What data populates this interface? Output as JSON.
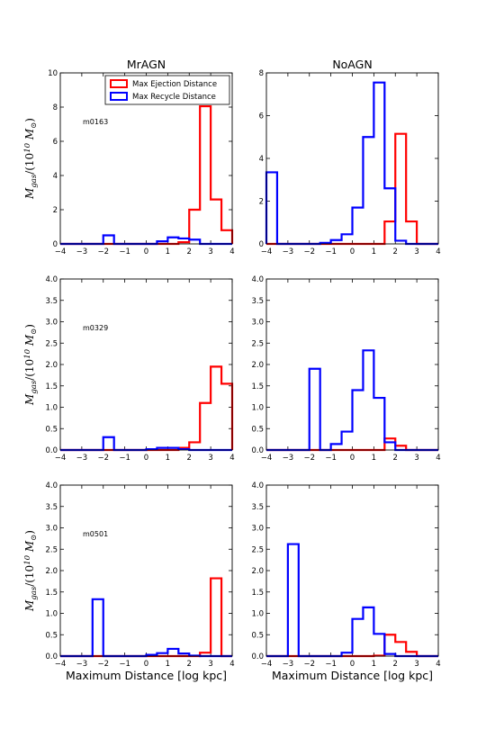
{
  "figure": {
    "column_titles": [
      "MrAGN",
      "NoAGN"
    ],
    "ylabel": {
      "main": "M",
      "sub": "gas",
      "rest_open": "/(10",
      "exp": "10",
      "mid": " M",
      "sun_sub": "⊙",
      "close": ")"
    },
    "xlabel": "Maximum Distance [log kpc]"
  },
  "colors": {
    "ejection": "#ff0000",
    "recycle": "#0000ff",
    "axis": "#000000"
  },
  "legend": {
    "placement": "upper-right",
    "entries": [
      "Max Ejection Distance",
      "Max Recycle Distance"
    ]
  },
  "chart_data": [
    {
      "type": "histogram",
      "panel": "MrAGN m0163",
      "annotation": "m0163",
      "xlim": [
        -4,
        4
      ],
      "ylim": [
        0,
        10
      ],
      "xticks": [
        "−4",
        "−3",
        "−2",
        "−1",
        "0",
        "1",
        "2",
        "3",
        "4"
      ],
      "yticks": [
        "0",
        "2",
        "4",
        "6",
        "8",
        "10"
      ],
      "bin_edges": [
        -4,
        -3.5,
        -3,
        -2.5,
        -2,
        -1.5,
        -1,
        -0.5,
        0,
        0.5,
        1,
        1.5,
        2,
        2.5,
        3,
        3.5,
        4
      ],
      "series": [
        {
          "name": "Max Ejection Distance",
          "values": [
            0,
            0,
            0,
            0,
            0,
            0,
            0,
            0,
            0,
            0,
            0,
            0.1,
            2.0,
            8.05,
            2.6,
            0.8
          ]
        },
        {
          "name": "Max Recycle Distance",
          "values": [
            0,
            0,
            0,
            0,
            0.5,
            0,
            0,
            0,
            0,
            0.15,
            0.38,
            0.32,
            0.25,
            0,
            0,
            0
          ]
        }
      ]
    },
    {
      "type": "histogram",
      "panel": "NoAGN m0163",
      "annotation": "",
      "xlim": [
        -4,
        4
      ],
      "ylim": [
        0,
        8
      ],
      "xticks": [
        "−4",
        "−3",
        "−2",
        "−1",
        "0",
        "1",
        "2",
        "3",
        "4"
      ],
      "yticks": [
        "0",
        "2",
        "4",
        "6",
        "8"
      ],
      "bin_edges": [
        -4,
        -3.5,
        -3,
        -2.5,
        -2,
        -1.5,
        -1,
        -0.5,
        0,
        0.5,
        1,
        1.5,
        2,
        2.5,
        3,
        3.5,
        4
      ],
      "series": [
        {
          "name": "Max Ejection Distance",
          "values": [
            0,
            0,
            0,
            0,
            0,
            0,
            0,
            0,
            0,
            0,
            0,
            1.05,
            5.15,
            1.05,
            0,
            0
          ]
        },
        {
          "name": "Max Recycle Distance",
          "values": [
            3.35,
            0,
            0,
            0,
            0,
            0.05,
            0.18,
            0.45,
            1.7,
            5.0,
            7.55,
            2.6,
            0.15,
            0,
            0,
            0
          ]
        }
      ]
    },
    {
      "type": "histogram",
      "panel": "MrAGN m0329",
      "annotation": "m0329",
      "xlim": [
        -4,
        4
      ],
      "ylim": [
        0,
        4
      ],
      "xticks": [
        "−4",
        "−3",
        "−2",
        "−1",
        "0",
        "1",
        "2",
        "3",
        "4"
      ],
      "yticks": [
        "0.0",
        "0.5",
        "1.0",
        "1.5",
        "2.0",
        "2.5",
        "3.0",
        "3.5",
        "4.0"
      ],
      "bin_edges": [
        -4,
        -3.5,
        -3,
        -2.5,
        -2,
        -1.5,
        -1,
        -0.5,
        0,
        0.5,
        1,
        1.5,
        2,
        2.5,
        3,
        3.5,
        4
      ],
      "series": [
        {
          "name": "Max Ejection Distance",
          "values": [
            0,
            0,
            0,
            0,
            0,
            0,
            0,
            0,
            0,
            0,
            0,
            0.05,
            0.18,
            1.1,
            1.95,
            1.55
          ]
        },
        {
          "name": "Max Recycle Distance",
          "values": [
            0,
            0,
            0,
            0,
            0.3,
            0,
            0,
            0,
            0.02,
            0.05,
            0.05,
            0.02,
            0,
            0,
            0,
            0
          ]
        }
      ]
    },
    {
      "type": "histogram",
      "panel": "NoAGN m0329",
      "annotation": "",
      "xlim": [
        -4,
        4
      ],
      "ylim": [
        0,
        4
      ],
      "xticks": [
        "−4",
        "−3",
        "−2",
        "−1",
        "0",
        "1",
        "2",
        "3",
        "4"
      ],
      "yticks": [
        "0.0",
        "0.5",
        "1.0",
        "1.5",
        "2.0",
        "2.5",
        "3.0",
        "3.5",
        "4.0"
      ],
      "bin_edges": [
        -4,
        -3.5,
        -3,
        -2.5,
        -2,
        -1.5,
        -1,
        -0.5,
        0,
        0.5,
        1,
        1.5,
        2,
        2.5,
        3,
        3.5,
        4
      ],
      "series": [
        {
          "name": "Max Ejection Distance",
          "values": [
            0,
            0,
            0,
            0,
            0,
            0,
            0,
            0,
            0,
            0,
            0,
            0.27,
            0.1,
            0,
            0,
            0
          ]
        },
        {
          "name": "Max Recycle Distance",
          "values": [
            0,
            0,
            0,
            0,
            1.9,
            0,
            0.14,
            0.43,
            1.4,
            2.33,
            1.22,
            0.18,
            0,
            0,
            0,
            0
          ]
        }
      ]
    },
    {
      "type": "histogram",
      "panel": "MrAGN m0501",
      "annotation": "m0501",
      "xlim": [
        -4,
        4
      ],
      "ylim": [
        0,
        4
      ],
      "xticks": [
        "−4",
        "−3",
        "−2",
        "−1",
        "0",
        "1",
        "2",
        "3",
        "4"
      ],
      "yticks": [
        "0.0",
        "0.5",
        "1.0",
        "1.5",
        "2.0",
        "2.5",
        "3.0",
        "3.5",
        "4.0"
      ],
      "bin_edges": [
        -4,
        -3.5,
        -3,
        -2.5,
        -2,
        -1.5,
        -1,
        -0.5,
        0,
        0.5,
        1,
        1.5,
        2,
        2.5,
        3,
        3.5,
        4
      ],
      "series": [
        {
          "name": "Max Ejection Distance",
          "values": [
            0,
            0,
            0,
            0,
            0,
            0,
            0,
            0,
            0,
            0,
            0,
            0,
            0,
            0.08,
            1.82,
            0
          ]
        },
        {
          "name": "Max Recycle Distance",
          "values": [
            0,
            0,
            0,
            1.33,
            0,
            0,
            0,
            0,
            0.03,
            0.07,
            0.17,
            0.06,
            0.01,
            0,
            0,
            0
          ]
        }
      ]
    },
    {
      "type": "histogram",
      "panel": "NoAGN m0501",
      "annotation": "",
      "xlim": [
        -4,
        4
      ],
      "ylim": [
        0,
        4
      ],
      "xticks": [
        "−4",
        "−3",
        "−2",
        "−1",
        "0",
        "1",
        "2",
        "3",
        "4"
      ],
      "yticks": [
        "0.0",
        "0.5",
        "1.0",
        "1.5",
        "2.0",
        "2.5",
        "3.0",
        "3.5",
        "4.0"
      ],
      "bin_edges": [
        -4,
        -3.5,
        -3,
        -2.5,
        -2,
        -1.5,
        -1,
        -0.5,
        0,
        0.5,
        1,
        1.5,
        2,
        2.5,
        3,
        3.5,
        4
      ],
      "series": [
        {
          "name": "Max Ejection Distance",
          "values": [
            0,
            0,
            0,
            0,
            0,
            0,
            0,
            0,
            0,
            0,
            0.01,
            0.5,
            0.33,
            0.1,
            0,
            0
          ]
        },
        {
          "name": "Max Recycle Distance",
          "values": [
            0,
            0,
            2.62,
            0,
            0,
            0,
            0,
            0.08,
            0.87,
            1.14,
            0.52,
            0.05,
            0,
            0,
            0,
            0
          ]
        }
      ]
    }
  ]
}
